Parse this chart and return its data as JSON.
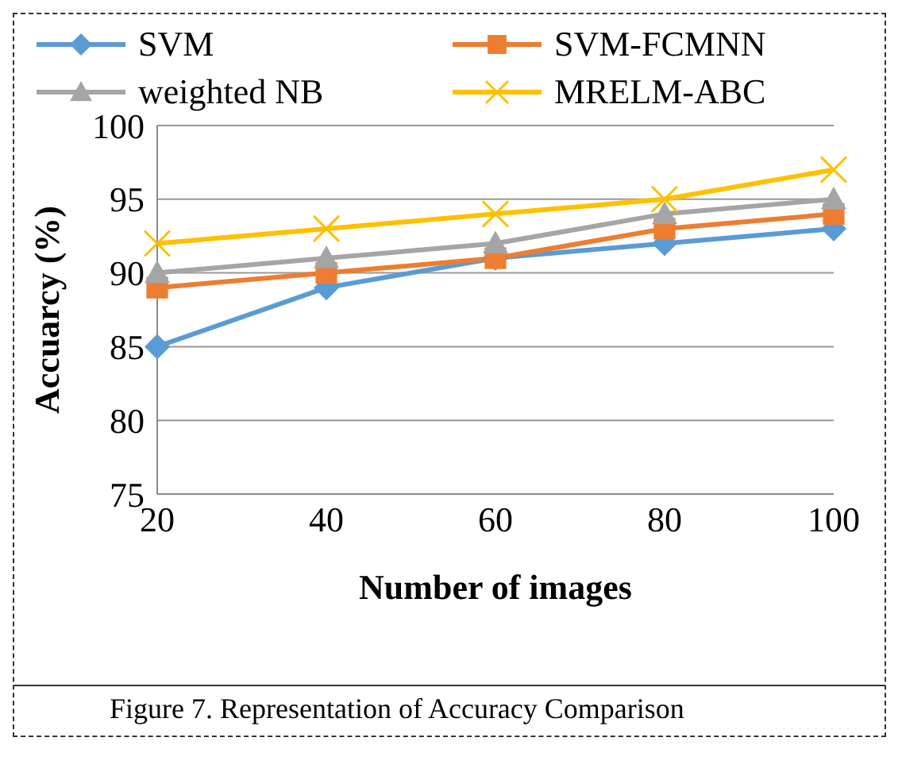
{
  "chart_data": {
    "type": "line",
    "xlabel": "Number of images",
    "ylabel": "Accuarcy (%)",
    "categories": [
      "20",
      "40",
      "60",
      "80",
      "100"
    ],
    "series": [
      {
        "name": "SVM",
        "color": "#5b9bd5",
        "marker": "diamond",
        "values": [
          85,
          89,
          91,
          92,
          93
        ]
      },
      {
        "name": "SVM-FCMNN",
        "color": "#ed7d31",
        "marker": "square",
        "values": [
          89,
          90,
          91,
          93,
          94
        ]
      },
      {
        "name": "weighted NB",
        "color": "#a5a5a5",
        "marker": "triangle",
        "values": [
          90,
          91,
          92,
          94,
          95
        ]
      },
      {
        "name": "MRELM-ABC",
        "color": "#ffc000",
        "marker": "cross",
        "values": [
          92,
          93,
          94,
          95,
          97
        ]
      }
    ],
    "ylim": [
      75,
      100
    ],
    "yticks": [
      75,
      80,
      85,
      90,
      95,
      100
    ],
    "grid": "y",
    "legend": "top",
    "annotations": [
      "Figure 7. Representation of Accuracy Comparison"
    ]
  }
}
